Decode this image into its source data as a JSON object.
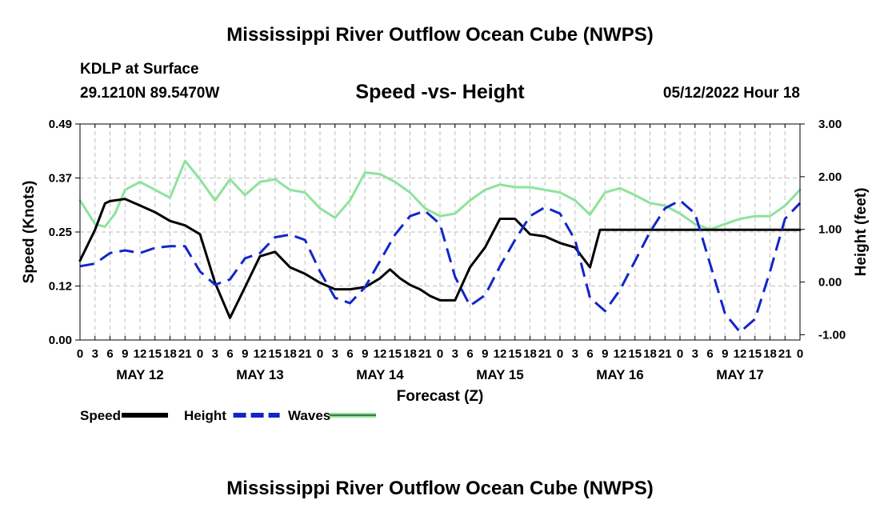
{
  "header": {
    "title": "Mississippi River Outflow Ocean Cube (NWPS)",
    "station": "KDLP at Surface",
    "coords": "29.1210N  89.5470W",
    "subtitle": "Speed -vs- Height",
    "datetime": "05/12/2022 Hour 18"
  },
  "footer": {
    "title": "Mississippi River Outflow Ocean Cube (NWPS)"
  },
  "chart_data": {
    "type": "line",
    "title": "Speed -vs- Height",
    "xlabel": "Forecast (Z)",
    "ylabel": "Speed (Knots)",
    "y2label": "Height (feet)",
    "xlim": [
      0,
      144
    ],
    "ylim": [
      0,
      0.49
    ],
    "y2lim": [
      -1.1,
      3.0
    ],
    "x_tick_labels": [
      "0",
      "3",
      "6",
      "9",
      "12",
      "15",
      "18",
      "21",
      "0",
      "3",
      "6",
      "9",
      "12",
      "15",
      "18",
      "21",
      "0",
      "3",
      "6",
      "9",
      "12",
      "15",
      "18",
      "21",
      "0",
      "3",
      "6",
      "9",
      "12",
      "15",
      "18",
      "21",
      "0",
      "3",
      "6",
      "9",
      "12",
      "15",
      "18",
      "21",
      "0",
      "3",
      "6",
      "9",
      "12",
      "15",
      "18",
      "21",
      "0"
    ],
    "day_labels": [
      {
        "x": 12,
        "label": "MAY 12"
      },
      {
        "x": 36,
        "label": "MAY 13"
      },
      {
        "x": 60,
        "label": "MAY 14"
      },
      {
        "x": 84,
        "label": "MAY 15"
      },
      {
        "x": 108,
        "label": "MAY 16"
      },
      {
        "x": 132,
        "label": "MAY 17"
      }
    ],
    "y_ticks": [
      {
        "value": 0.0,
        "label": "0.00"
      },
      {
        "value": 0.1225,
        "label": "0.12"
      },
      {
        "value": 0.245,
        "label": "0.25"
      },
      {
        "value": 0.3675,
        "label": "0.37"
      },
      {
        "value": 0.49,
        "label": "0.49"
      }
    ],
    "y2_ticks": [
      {
        "value": 3.0,
        "label": "3.00"
      },
      {
        "value": 2.0,
        "label": "2.00"
      },
      {
        "value": 1.0,
        "label": "1.00"
      },
      {
        "value": 0.0,
        "label": "0.00"
      },
      {
        "value": -1.0,
        "label": "-1.00"
      }
    ],
    "series": [
      {
        "name": "Speed",
        "axis": "left",
        "color": "#000000",
        "style": "solid",
        "points": [
          [
            0,
            0.18
          ],
          [
            3,
            0.25
          ],
          [
            5,
            0.31
          ],
          [
            6,
            0.315
          ],
          [
            9,
            0.32
          ],
          [
            12,
            0.305
          ],
          [
            15,
            0.29
          ],
          [
            18,
            0.27
          ],
          [
            21,
            0.26
          ],
          [
            24,
            0.24
          ],
          [
            27,
            0.13
          ],
          [
            30,
            0.05
          ],
          [
            33,
            0.12
          ],
          [
            36,
            0.19
          ],
          [
            39,
            0.2
          ],
          [
            42,
            0.165
          ],
          [
            45,
            0.15
          ],
          [
            48,
            0.13
          ],
          [
            51,
            0.115
          ],
          [
            54,
            0.115
          ],
          [
            57,
            0.12
          ],
          [
            60,
            0.14
          ],
          [
            62,
            0.16
          ],
          [
            64,
            0.14
          ],
          [
            66,
            0.125
          ],
          [
            68,
            0.115
          ],
          [
            70,
            0.1
          ],
          [
            72,
            0.09
          ],
          [
            75,
            0.09
          ],
          [
            78,
            0.165
          ],
          [
            81,
            0.21
          ],
          [
            84,
            0.275
          ],
          [
            87,
            0.275
          ],
          [
            90,
            0.24
          ],
          [
            93,
            0.235
          ],
          [
            96,
            0.22
          ],
          [
            99,
            0.21
          ],
          [
            102,
            0.165
          ],
          [
            104,
            0.25
          ],
          [
            108,
            0.25
          ],
          [
            144,
            0.25
          ]
        ]
      },
      {
        "name": "Height",
        "axis": "right",
        "color": "#1226c8",
        "style": "dashed",
        "points": [
          [
            0,
            0.3
          ],
          [
            3,
            0.35
          ],
          [
            6,
            0.55
          ],
          [
            9,
            0.6
          ],
          [
            12,
            0.55
          ],
          [
            15,
            0.65
          ],
          [
            18,
            0.68
          ],
          [
            21,
            0.68
          ],
          [
            24,
            0.2
          ],
          [
            27,
            -0.05
          ],
          [
            30,
            0.05
          ],
          [
            33,
            0.45
          ],
          [
            36,
            0.55
          ],
          [
            39,
            0.85
          ],
          [
            42,
            0.9
          ],
          [
            45,
            0.8
          ],
          [
            48,
            0.2
          ],
          [
            51,
            -0.3
          ],
          [
            54,
            -0.4
          ],
          [
            57,
            -0.1
          ],
          [
            60,
            0.4
          ],
          [
            63,
            0.9
          ],
          [
            66,
            1.25
          ],
          [
            69,
            1.35
          ],
          [
            72,
            1.1
          ],
          [
            75,
            0.1
          ],
          [
            78,
            -0.45
          ],
          [
            81,
            -0.25
          ],
          [
            84,
            0.3
          ],
          [
            87,
            0.8
          ],
          [
            90,
            1.25
          ],
          [
            93,
            1.42
          ],
          [
            96,
            1.3
          ],
          [
            99,
            0.8
          ],
          [
            102,
            -0.3
          ],
          [
            105,
            -0.55
          ],
          [
            108,
            -0.15
          ],
          [
            111,
            0.4
          ],
          [
            114,
            0.95
          ],
          [
            117,
            1.4
          ],
          [
            120,
            1.55
          ],
          [
            123,
            1.3
          ],
          [
            126,
            0.35
          ],
          [
            129,
            -0.6
          ],
          [
            132,
            -0.95
          ],
          [
            135,
            -0.7
          ],
          [
            138,
            0.2
          ],
          [
            141,
            1.2
          ],
          [
            144,
            1.5
          ]
        ]
      },
      {
        "name": "Waves",
        "axis": "right",
        "color": "#8de39b",
        "style": "solid",
        "points": [
          [
            0,
            1.55
          ],
          [
            3,
            1.1
          ],
          [
            5,
            1.05
          ],
          [
            7,
            1.3
          ],
          [
            9,
            1.75
          ],
          [
            12,
            1.9
          ],
          [
            15,
            1.75
          ],
          [
            18,
            1.6
          ],
          [
            21,
            2.3
          ],
          [
            24,
            1.95
          ],
          [
            27,
            1.55
          ],
          [
            30,
            1.95
          ],
          [
            33,
            1.65
          ],
          [
            36,
            1.9
          ],
          [
            39,
            1.95
          ],
          [
            42,
            1.75
          ],
          [
            45,
            1.7
          ],
          [
            48,
            1.4
          ],
          [
            51,
            1.22
          ],
          [
            54,
            1.55
          ],
          [
            57,
            2.08
          ],
          [
            60,
            2.05
          ],
          [
            63,
            1.9
          ],
          [
            66,
            1.7
          ],
          [
            69,
            1.4
          ],
          [
            72,
            1.25
          ],
          [
            75,
            1.3
          ],
          [
            78,
            1.55
          ],
          [
            81,
            1.75
          ],
          [
            84,
            1.85
          ],
          [
            87,
            1.8
          ],
          [
            90,
            1.8
          ],
          [
            93,
            1.75
          ],
          [
            96,
            1.7
          ],
          [
            99,
            1.55
          ],
          [
            102,
            1.28
          ],
          [
            105,
            1.7
          ],
          [
            108,
            1.78
          ],
          [
            111,
            1.65
          ],
          [
            114,
            1.5
          ],
          [
            117,
            1.45
          ],
          [
            120,
            1.3
          ],
          [
            123,
            1.1
          ],
          [
            126,
            1.0
          ],
          [
            129,
            1.1
          ],
          [
            132,
            1.2
          ],
          [
            135,
            1.25
          ],
          [
            138,
            1.25
          ],
          [
            141,
            1.45
          ],
          [
            144,
            1.75
          ]
        ]
      }
    ],
    "legend": [
      {
        "label": "Speed",
        "color": "#000000",
        "style": "solid"
      },
      {
        "label": "Height",
        "color": "#1226c8",
        "style": "dashed"
      },
      {
        "label": "Waves",
        "color": "#8de39b",
        "style": "solid"
      }
    ]
  }
}
